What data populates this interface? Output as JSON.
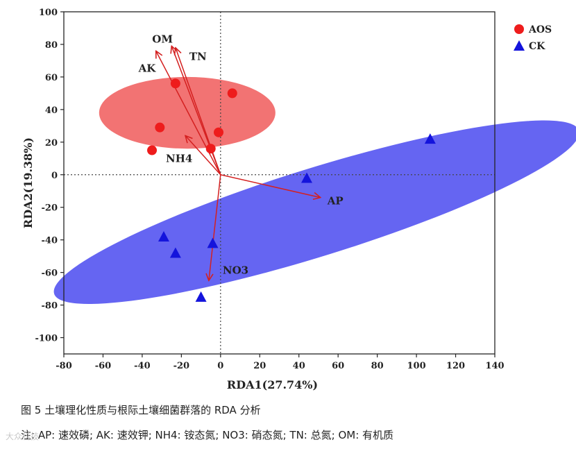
{
  "chart_data": {
    "type": "scatter",
    "xlabel": "RDA1(27.74%)",
    "ylabel": "RDA2(19.38%)",
    "xlim": [
      -80,
      140
    ],
    "ylim": [
      -110,
      100
    ],
    "xticks": [
      -80,
      -60,
      -40,
      -20,
      0,
      20,
      40,
      60,
      80,
      100,
      120,
      140
    ],
    "yticks": [
      -100,
      -80,
      -60,
      -40,
      -20,
      0,
      20,
      40,
      60,
      80,
      100
    ],
    "legend_position": "top-right",
    "series": [
      {
        "name": "AOS",
        "marker": "circle",
        "color": "#ee1c1c",
        "points": [
          [
            -23,
            56
          ],
          [
            6,
            50
          ],
          [
            -31,
            29
          ],
          [
            -35,
            15
          ],
          [
            -1,
            26
          ],
          [
            -5,
            16
          ]
        ]
      },
      {
        "name": "CK",
        "marker": "triangle",
        "color": "#1414dc",
        "points": [
          [
            107,
            22
          ],
          [
            44,
            -2
          ],
          [
            -29,
            -38
          ],
          [
            -23,
            -48
          ],
          [
            -4,
            -42
          ],
          [
            -10,
            -75
          ]
        ]
      }
    ],
    "ellipses": [
      {
        "series": "AOS",
        "color": "#f05a5a",
        "opacity": 0.85,
        "center": [
          -17,
          38
        ],
        "semi_axes": [
          45,
          22
        ],
        "rotation_deg": 0
      },
      {
        "series": "CK",
        "color": "#4a4af0",
        "opacity": 0.85,
        "center": [
          49,
          -23
        ],
        "semi_axes": [
          143,
          27
        ],
        "rotation_deg": 20.5
      }
    ],
    "arrows": [
      {
        "name": "OM",
        "x": -25,
        "y": 79
      },
      {
        "name": "TN",
        "x": -23,
        "y": 78
      },
      {
        "name": "AK",
        "x": -33,
        "y": 76
      },
      {
        "name": "NH4",
        "x": -18,
        "y": 24
      },
      {
        "name": "AP",
        "x": 51,
        "y": -14
      },
      {
        "name": "NO3",
        "x": -6,
        "y": -65
      }
    ],
    "arrow_color": "#d42020"
  },
  "caption": {
    "title": "图 5 土壤理化性质与根际土壤细菌群落的 RDA 分析",
    "note": "注: AP: 速效磷; AK: 速效钾; NH4: 铵态氮; NO3: 硝态氮; TN: 总氮; OM: 有机质"
  },
  "watermark": "大众科技"
}
